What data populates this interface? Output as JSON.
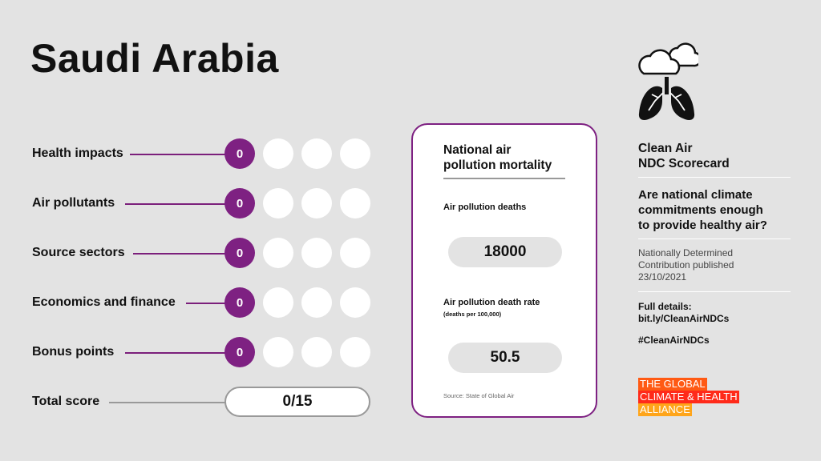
{
  "header": {
    "title": "Saudi Arabia"
  },
  "rows": [
    {
      "label": "Health impacts",
      "score": "0"
    },
    {
      "label": "Air pollutants",
      "score": "0"
    },
    {
      "label": "Source sectors",
      "score": "0"
    },
    {
      "label": "Economics and finance",
      "score": "0"
    },
    {
      "label": "Bonus points",
      "score": "0"
    }
  ],
  "total": {
    "label": "Total score",
    "value": "0/15"
  },
  "card": {
    "title_line1": "National air",
    "title_line2": "pollution mortality",
    "deaths_label": "Air pollution deaths",
    "deaths_value": "18000",
    "rate_label": "Air pollution death rate",
    "rate_sub": "(deaths per 100,000)",
    "rate_value": "50.5",
    "source": "Source: State of Global Air"
  },
  "sidebar": {
    "heading_line1": "Clean Air",
    "heading_line2": "NDC Scorecard",
    "question_line1": "Are national climate",
    "question_line2": "commitments enough",
    "question_line3": "to provide healthy air?",
    "ndc_line1": "Nationally Determined",
    "ndc_line2": "Contribution published",
    "ndc_line3": "23/10/2021",
    "details_label": "Full details:",
    "details_link": "bit.ly/CleanAirNDCs",
    "hashtag": "#CleanAirNDCs"
  },
  "alliance": {
    "line1": "THE GLOBAL",
    "line2": "CLIMATE & HEALTH",
    "line3": "ALLIANCE",
    "colors": [
      "#ff5a14",
      "#ff2a1a",
      "#ffa51a"
    ]
  },
  "icons": {
    "logo": "clouds-lungs-icon"
  },
  "colors": {
    "accent": "#7e2182",
    "background": "#e3e3e3"
  }
}
